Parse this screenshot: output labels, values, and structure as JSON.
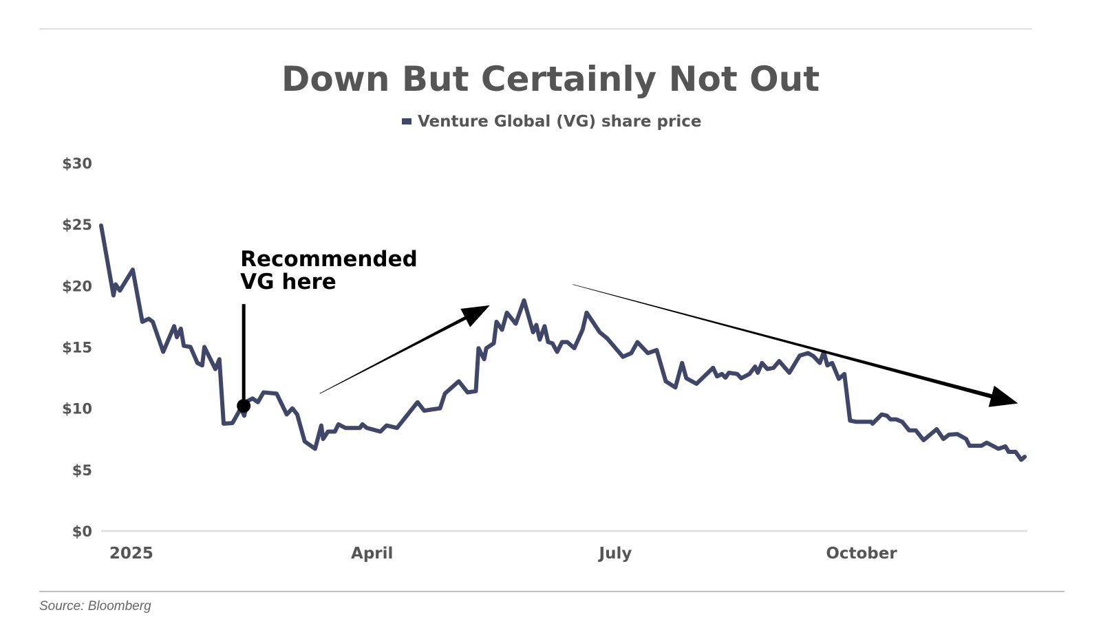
{
  "chart_data": {
    "type": "line",
    "title": "Down But Certainly Not Out",
    "legend": [
      {
        "label": "Venture Global (VG) share price",
        "color": "#3f4668"
      }
    ],
    "legend_placement": "top-center",
    "source": "Source: Bloomberg",
    "xlabel": "",
    "ylabel": "",
    "x_unit": "days from Jan 1, 2025 (approx.)",
    "xlim": [
      -11.3,
      335
    ],
    "ylim": [
      0,
      30
    ],
    "grid": false,
    "y_ticks": [
      {
        "value": 0,
        "label": "$0"
      },
      {
        "value": 5,
        "label": "$5"
      },
      {
        "value": 10,
        "label": "$10"
      },
      {
        "value": 15,
        "label": "$15"
      },
      {
        "value": 20,
        "label": "$20"
      },
      {
        "value": 25,
        "label": "$25"
      },
      {
        "value": 30,
        "label": "$30"
      }
    ],
    "x_ticks": [
      {
        "value": 0,
        "label": "2025"
      },
      {
        "value": 90,
        "label": "April"
      },
      {
        "value": 181,
        "label": "July"
      },
      {
        "value": 273,
        "label": "October"
      }
    ],
    "series": [
      {
        "name": "Venture Global (VG) share price",
        "color": "#3f4668",
        "x": [
          -11.3,
          -6.7,
          -5.9,
          -4.3,
          0.5,
          4.1,
          6.5,
          8,
          11.9,
          16,
          17,
          18.5,
          19.6,
          22.1,
          24.7,
          26.5,
          27.3,
          31.4,
          32.9,
          34.5,
          37.8,
          40.9,
          42.2,
          43.5,
          45.3,
          47.3,
          49.4,
          54.3,
          58.1,
          60.2,
          62,
          64.8,
          68.7,
          71,
          71.7,
          73.5,
          76.1,
          77.4,
          80,
          85.4,
          86.4,
          88,
          93.1,
          95.4,
          99.3,
          107,
          109.5,
          112.1,
          115.4,
          117.2,
          122.4,
          125.7,
          128.8,
          129.8,
          131.9,
          132.7,
          135.5,
          136.5,
          138.6,
          140.4,
          143.7,
          146.8,
          150.2,
          151.4,
          152.7,
          154.5,
          155.8,
          157.4,
          159.2,
          161,
          163,
          165.6,
          168.7,
          170.2,
          175.1,
          177.9,
          183.8,
          186.9,
          189.2,
          193.1,
          196.4,
          199.8,
          203.4,
          205.9,
          207.5,
          211.3,
          217.5,
          219,
          220.8,
          222.1,
          223.4,
          226.5,
          228,
          231.1,
          233.2,
          234.2,
          235.8,
          237.8,
          240.1,
          242.2,
          246,
          249.9,
          253,
          255,
          257.4,
          258.9,
          260.2,
          262,
          264.5,
          266.6,
          268.7,
          271,
          276.6,
          277.1,
          280.5,
          282.5,
          283.8,
          285.9,
          288.2,
          290.8,
          293.3,
          296.2,
          301.1,
          303.6,
          305.7,
          308.8,
          312.1,
          313.4,
          317.8,
          319.8,
          324.2,
          326.8,
          328,
          330.6,
          332.7,
          334
        ],
        "values": [
          24.9,
          19.2,
          20.1,
          19.6,
          21.3,
          17.05,
          17.3,
          17.05,
          14.6,
          16.7,
          15.8,
          16.5,
          15.1,
          15.0,
          13.7,
          13.5,
          15.0,
          13.2,
          14.0,
          8.75,
          8.8,
          10.0,
          9.4,
          10.6,
          10.8,
          10.5,
          11.3,
          11.2,
          9.5,
          10.0,
          9.5,
          7.3,
          6.7,
          8.6,
          7.5,
          8.1,
          8.1,
          8.7,
          8.4,
          8.4,
          8.7,
          8.4,
          8.1,
          8.6,
          8.4,
          10.5,
          9.8,
          9.9,
          10.0,
          11.2,
          12.2,
          11.3,
          11.4,
          14.9,
          14.0,
          14.9,
          15.3,
          17.05,
          16.4,
          17.8,
          16.9,
          18.8,
          16.2,
          16.8,
          15.6,
          16.7,
          15.4,
          15.3,
          14.6,
          15.4,
          15.4,
          14.9,
          16.4,
          17.8,
          16.2,
          15.7,
          14.2,
          14.5,
          15.4,
          14.5,
          14.75,
          12.2,
          11.7,
          13.7,
          12.45,
          12.0,
          13.3,
          12.6,
          12.8,
          12.5,
          12.9,
          12.8,
          12.45,
          12.8,
          13.4,
          12.9,
          13.7,
          13.2,
          13.3,
          13.85,
          12.9,
          14.3,
          14.5,
          14.25,
          13.7,
          14.6,
          13.5,
          13.7,
          12.4,
          12.8,
          9.0,
          8.9,
          8.9,
          8.75,
          9.5,
          9.4,
          9.1,
          9.1,
          8.9,
          8.2,
          8.2,
          7.4,
          8.3,
          7.5,
          7.85,
          7.9,
          7.5,
          6.95,
          6.95,
          7.2,
          6.7,
          6.9,
          6.45,
          6.45,
          5.8,
          6.05
        ]
      }
    ],
    "annotations": {
      "recommendation": {
        "text_line1": "Recommended",
        "text_line2": "VG here",
        "x": 42,
        "price": 10.2,
        "marker_top_price": 18.5
      },
      "up_arrow": {
        "from": [
          70.4,
          11.2
        ],
        "to": [
          134,
          18.4
        ]
      },
      "down_arrow": {
        "from": [
          165,
          20.1
        ],
        "to": [
          331.5,
          10.4
        ]
      }
    }
  }
}
